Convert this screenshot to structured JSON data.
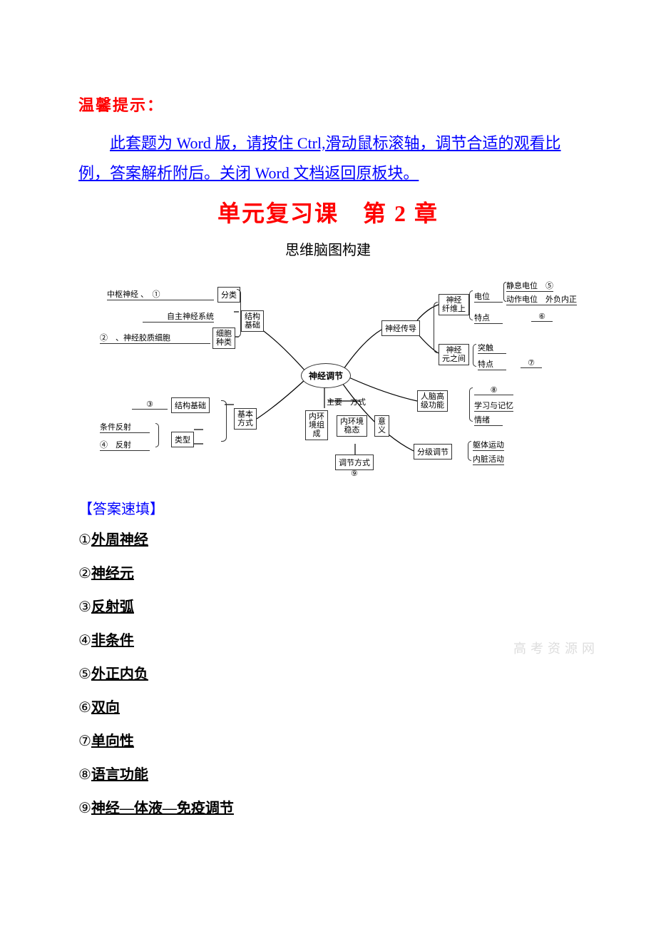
{
  "header": {
    "warm_tip": "温馨提示：",
    "instruction": "此套题为 Word 版，请按住 Ctrl,滑动鼠标滚轴，调节合适的观看比例，答案解析附后。关闭 Word 文档返回原板块。",
    "unit_title": "单元复习课　第 2 章",
    "subtitle": "思维脑图构建"
  },
  "mindmap": {
    "center": "神经调节",
    "left_top": {
      "t1": "中枢神经 、　①",
      "box1": "分类",
      "t2": "自主神经系统",
      "box2": "结构\n基础",
      "t3": "②　、神经胶质细胞",
      "box3": "细胞\n种类"
    },
    "left_mid": {
      "t1": "③",
      "box1": "结构基础",
      "box2": "基本\n方式",
      "t2": "条件反射",
      "t3": "④　反射",
      "box3": "类型"
    },
    "center_col": {
      "t_main": "主要　方式",
      "box_env": "内环\n境组\n成",
      "box_stable": "内环境\n稳态",
      "box_mean": "意\n义",
      "box_reg": "调节方式",
      "t9": "⑨"
    },
    "right_top": {
      "box_conduct": "神经传导",
      "box_fiber": "神经\n纤维上",
      "t_potential": "电位",
      "t_rest": "静息电位　⑤",
      "t_action": "动作电位　外负内正",
      "t_feature": "特点",
      "t6": "⑥",
      "box_between": "神经\n元之间",
      "t_synapse": "突触",
      "t_feature2": "特点",
      "t7": "⑦"
    },
    "right_mid": {
      "box_brain": "人脑高\n级功能",
      "t8": "⑧",
      "t_learn": "学习与记忆",
      "t_emotion": "情绪"
    },
    "right_bot": {
      "box_level": "分级调节",
      "t_body": "躯体运动",
      "t_organ": "内脏活动"
    }
  },
  "answers": {
    "section_label": "【答案速填】",
    "items": [
      {
        "num": "①",
        "val": "外周神经"
      },
      {
        "num": "②",
        "val": "神经元"
      },
      {
        "num": "③",
        "val": "反射弧"
      },
      {
        "num": "④",
        "val": "非条件"
      },
      {
        "num": "⑤",
        "val": "外正内负"
      },
      {
        "num": "⑥",
        "val": "双向"
      },
      {
        "num": "⑦",
        "val": "单向性"
      },
      {
        "num": "⑧",
        "val": "语言功能"
      },
      {
        "num": "⑨",
        "val": "神经—体液—免疫调节"
      }
    ]
  },
  "watermark": "高考资源网",
  "colors": {
    "red": "#ff0000",
    "blue": "#0000ff",
    "black": "#000000",
    "bg": "#ffffff"
  }
}
